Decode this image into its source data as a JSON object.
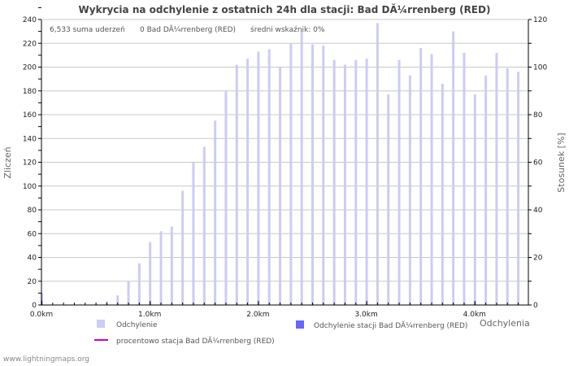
{
  "title": "Wykrycia na odchylenie z ostatnich 24h dla stacji: Bad DĂ¼rrenberg (RED)",
  "stats": {
    "total": "6,533 suma uderzeń",
    "station": "0 Bad DĂ¼rrenberg (RED)",
    "avg": "średni wskaźnik: 0%"
  },
  "axes": {
    "left_label": "Zliczeń",
    "right_label": "Stosunek [%]",
    "x_label": "Odchylenia",
    "left_ticks": [
      "0",
      "20",
      "40",
      "60",
      "80",
      "100",
      "120",
      "140",
      "160",
      "180",
      "200",
      "220",
      "240"
    ],
    "right_ticks": [
      "0",
      "20",
      "40",
      "60",
      "80",
      "100",
      "120"
    ],
    "x_ticks": [
      "0.0km",
      "1.0km",
      "2.0km",
      "3.0km",
      "4.0km"
    ]
  },
  "legend": {
    "item1": "Odchylenie",
    "item2": "Odchylenie stacji Bad DĂ¼rrenberg (RED)",
    "item3": "procentowo stacja Bad DĂ¼rrenberg (RED)"
  },
  "colors": {
    "bar": "#ccccf5",
    "station_bar": "#6666ff",
    "line": "#cc00cc",
    "grid": "#c8c8c8"
  },
  "footer": "www.lightningmaps.org",
  "chart_data": {
    "type": "bar",
    "title": "Wykrycia na odchylenie z ostatnich 24h dla stacji: Bad DĂ¼rrenberg (RED)",
    "xlabel": "Odchylenia",
    "ylabel": "Zliczeń",
    "y2label": "Stosunek [%]",
    "ylim": [
      0,
      240
    ],
    "y2lim": [
      0,
      120
    ],
    "x_step_km": 0.1,
    "x_start_km": 0.0,
    "categories": [
      "0.0",
      "0.1",
      "0.2",
      "0.3",
      "0.4",
      "0.5",
      "0.6",
      "0.7",
      "0.8",
      "0.9",
      "1.0",
      "1.1",
      "1.2",
      "1.3",
      "1.4",
      "1.5",
      "1.6",
      "1.7",
      "1.8",
      "1.9",
      "2.0",
      "2.1",
      "2.2",
      "2.3",
      "2.4",
      "2.5",
      "2.6",
      "2.7",
      "2.8",
      "2.9",
      "3.0",
      "3.1",
      "3.2",
      "3.3",
      "3.4",
      "3.5",
      "3.6",
      "3.7",
      "3.8",
      "3.9",
      "4.0",
      "4.1",
      "4.2",
      "4.3",
      "4.4"
    ],
    "series": [
      {
        "name": "Odchylenie",
        "values": [
          10,
          0,
          0,
          0,
          0,
          1,
          3,
          8,
          20,
          35,
          53,
          62,
          66,
          96,
          120,
          133,
          155,
          180,
          202,
          207,
          213,
          215,
          200,
          220,
          230,
          219,
          218,
          206,
          202,
          206,
          207,
          237,
          177,
          206,
          193,
          216,
          211,
          186,
          230,
          212,
          177,
          193,
          212,
          199,
          196
        ]
      },
      {
        "name": "Odchylenie stacji Bad DĂ¼rrenberg (RED)",
        "values": [
          0,
          0,
          0,
          0,
          0,
          0,
          0,
          0,
          0,
          0,
          0,
          0,
          0,
          0,
          0,
          0,
          0,
          0,
          0,
          0,
          0,
          0,
          0,
          0,
          0,
          0,
          0,
          0,
          0,
          0,
          0,
          0,
          0,
          0,
          0,
          0,
          0,
          0,
          0,
          0,
          0,
          0,
          0,
          0,
          0
        ]
      },
      {
        "name": "procentowo stacja Bad DĂ¼rrenberg (RED)",
        "type": "line",
        "axis": "right",
        "values": [
          0,
          0,
          0,
          0,
          0,
          0,
          0,
          0,
          0,
          0,
          0,
          0,
          0,
          0,
          0,
          0,
          0,
          0,
          0,
          0,
          0,
          0,
          0,
          0,
          0,
          0,
          0,
          0,
          0,
          0,
          0,
          0,
          0,
          0,
          0,
          0,
          0,
          0,
          0,
          0,
          0,
          0,
          0,
          0,
          0
        ]
      }
    ],
    "grid": true,
    "legend_position": "bottom"
  }
}
